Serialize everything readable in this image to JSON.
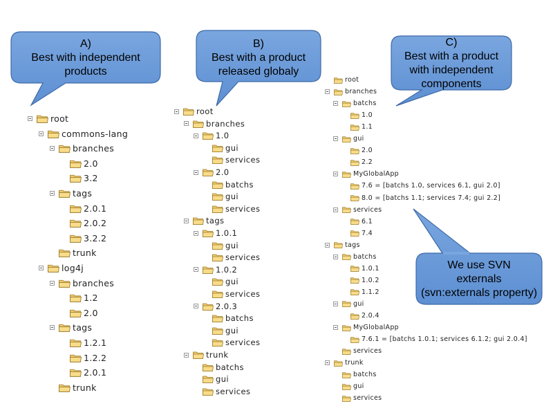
{
  "bubbles": {
    "a": {
      "letter": "A)",
      "line1": "Best with independent",
      "line2": "products"
    },
    "b": {
      "letter": "B)",
      "line1": "Best with a product",
      "line2": "released globaly"
    },
    "c": {
      "letter": "C)",
      "line1": "Best with a product",
      "line2": "with independent",
      "line3": "components"
    },
    "d": {
      "line1": "We use SVN",
      "line2": "externals",
      "line3": "(svn:externals property)"
    }
  },
  "tree_a": [
    {
      "label": "root",
      "depth": 0,
      "exp": true
    },
    {
      "label": "commons-lang",
      "depth": 1,
      "exp": true
    },
    {
      "label": "branches",
      "depth": 2,
      "exp": true
    },
    {
      "label": "2.0",
      "depth": 3,
      "exp": false
    },
    {
      "label": "3.2",
      "depth": 3,
      "exp": false
    },
    {
      "label": "tags",
      "depth": 2,
      "exp": true
    },
    {
      "label": "2.0.1",
      "depth": 3,
      "exp": false
    },
    {
      "label": "2.0.2",
      "depth": 3,
      "exp": false
    },
    {
      "label": "3.2.2",
      "depth": 3,
      "exp": false
    },
    {
      "label": "trunk",
      "depth": 2,
      "exp": false
    },
    {
      "label": "log4j",
      "depth": 1,
      "exp": true
    },
    {
      "label": "branches",
      "depth": 2,
      "exp": true
    },
    {
      "label": "1.2",
      "depth": 3,
      "exp": false
    },
    {
      "label": "2.0",
      "depth": 3,
      "exp": false
    },
    {
      "label": "tags",
      "depth": 2,
      "exp": true
    },
    {
      "label": "1.2.1",
      "depth": 3,
      "exp": false
    },
    {
      "label": "1.2.2",
      "depth": 3,
      "exp": false
    },
    {
      "label": "2.0.1",
      "depth": 3,
      "exp": false
    },
    {
      "label": "trunk",
      "depth": 2,
      "exp": false
    }
  ],
  "tree_b": [
    {
      "label": "root",
      "depth": 0,
      "exp": true
    },
    {
      "label": "branches",
      "depth": 1,
      "exp": true
    },
    {
      "label": "1.0",
      "depth": 2,
      "exp": true
    },
    {
      "label": "gui",
      "depth": 3,
      "exp": false
    },
    {
      "label": "services",
      "depth": 3,
      "exp": false
    },
    {
      "label": "2.0",
      "depth": 2,
      "exp": true
    },
    {
      "label": "batchs",
      "depth": 3,
      "exp": false
    },
    {
      "label": "gui",
      "depth": 3,
      "exp": false
    },
    {
      "label": "services",
      "depth": 3,
      "exp": false
    },
    {
      "label": "tags",
      "depth": 1,
      "exp": true
    },
    {
      "label": "1.0.1",
      "depth": 2,
      "exp": true
    },
    {
      "label": "gui",
      "depth": 3,
      "exp": false
    },
    {
      "label": "services",
      "depth": 3,
      "exp": false
    },
    {
      "label": "1.0.2",
      "depth": 2,
      "exp": true
    },
    {
      "label": "gui",
      "depth": 3,
      "exp": false
    },
    {
      "label": "services",
      "depth": 3,
      "exp": false
    },
    {
      "label": "2.0.3",
      "depth": 2,
      "exp": true
    },
    {
      "label": "batchs",
      "depth": 3,
      "exp": false
    },
    {
      "label": "gui",
      "depth": 3,
      "exp": false
    },
    {
      "label": "services",
      "depth": 3,
      "exp": false
    },
    {
      "label": "trunk",
      "depth": 1,
      "exp": true
    },
    {
      "label": "batchs",
      "depth": 2,
      "exp": false
    },
    {
      "label": "gui",
      "depth": 2,
      "exp": false
    },
    {
      "label": "services",
      "depth": 2,
      "exp": false
    }
  ],
  "tree_c": [
    {
      "label": "root",
      "depth": 0,
      "exp": false
    },
    {
      "label": "branches",
      "depth": 0,
      "exp": true
    },
    {
      "label": "batchs",
      "depth": 1,
      "exp": true
    },
    {
      "label": "1.0",
      "depth": 2,
      "exp": false
    },
    {
      "label": "1.1",
      "depth": 2,
      "exp": false
    },
    {
      "label": "gui",
      "depth": 1,
      "exp": true
    },
    {
      "label": "2.0",
      "depth": 2,
      "exp": false
    },
    {
      "label": "2.2",
      "depth": 2,
      "exp": false
    },
    {
      "label": "MyGlobalApp",
      "depth": 1,
      "exp": true
    },
    {
      "label": "7.6 = [batchs 1.0, services 6.1, gui 2.0]",
      "depth": 2,
      "exp": false
    },
    {
      "label": "8.0 = [batchs 1.1; services 7.4; gui 2.2]",
      "depth": 2,
      "exp": false
    },
    {
      "label": "services",
      "depth": 1,
      "exp": true
    },
    {
      "label": "6.1",
      "depth": 2,
      "exp": false
    },
    {
      "label": "7.4",
      "depth": 2,
      "exp": false
    },
    {
      "label": "tags",
      "depth": 0,
      "exp": true
    },
    {
      "label": "batchs",
      "depth": 1,
      "exp": true
    },
    {
      "label": "1.0.1",
      "depth": 2,
      "exp": false
    },
    {
      "label": "1.0.2",
      "depth": 2,
      "exp": false
    },
    {
      "label": "1.1.2",
      "depth": 2,
      "exp": false
    },
    {
      "label": "gui",
      "depth": 1,
      "exp": true
    },
    {
      "label": "2.0.4",
      "depth": 2,
      "exp": false
    },
    {
      "label": "MyGlobalApp",
      "depth": 1,
      "exp": true
    },
    {
      "label": "7.6.1 = [batchs 1.0.1; services 6.1.2; gui 2.0.4]",
      "depth": 2,
      "exp": false
    },
    {
      "label": "services",
      "depth": 1,
      "exp": false
    },
    {
      "label": "trunk",
      "depth": 0,
      "exp": true
    },
    {
      "label": "batchs",
      "depth": 1,
      "exp": false
    },
    {
      "label": "gui",
      "depth": 1,
      "exp": false
    },
    {
      "label": "services",
      "depth": 1,
      "exp": false
    }
  ]
}
